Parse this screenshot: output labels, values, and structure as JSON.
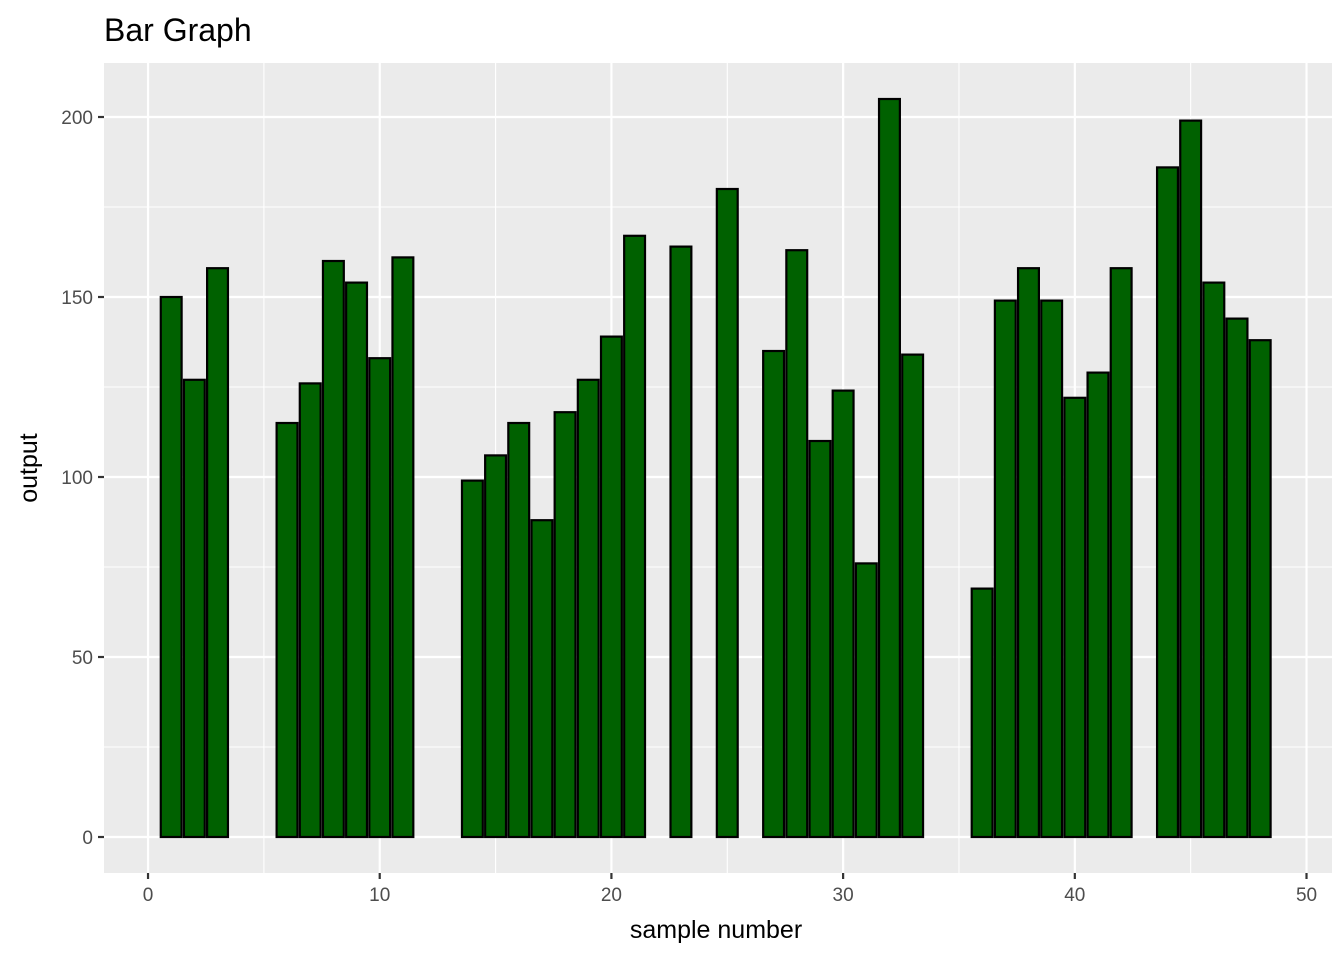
{
  "chart_data": {
    "type": "bar",
    "title": "Bar Graph",
    "xlabel": "sample number",
    "ylabel": "output",
    "xlim": [
      -1.9,
      51.1
    ],
    "ylim": [
      -10,
      215
    ],
    "x_ticks": [
      0,
      10,
      20,
      30,
      40,
      50
    ],
    "y_ticks": [
      0,
      50,
      100,
      150,
      200
    ],
    "grid": true,
    "legend": "none",
    "bar_fill": "#006100",
    "bar_outline": "#000000",
    "panel_background": "#ebebeb",
    "x": [
      1,
      2,
      3,
      6,
      7,
      8,
      9,
      10,
      11,
      14,
      15,
      16,
      17,
      18,
      19,
      20,
      21,
      23,
      25,
      27,
      28,
      29,
      30,
      31,
      32,
      33,
      36,
      37,
      38,
      39,
      40,
      41,
      42,
      44,
      45,
      46,
      47,
      48
    ],
    "values": [
      150,
      127,
      158,
      115,
      126,
      160,
      154,
      133,
      161,
      99,
      106,
      115,
      88,
      118,
      127,
      139,
      167,
      164,
      180,
      135,
      163,
      110,
      124,
      76,
      205,
      134,
      69,
      149,
      158,
      149,
      122,
      129,
      158,
      186,
      199,
      154,
      144,
      138
    ]
  }
}
